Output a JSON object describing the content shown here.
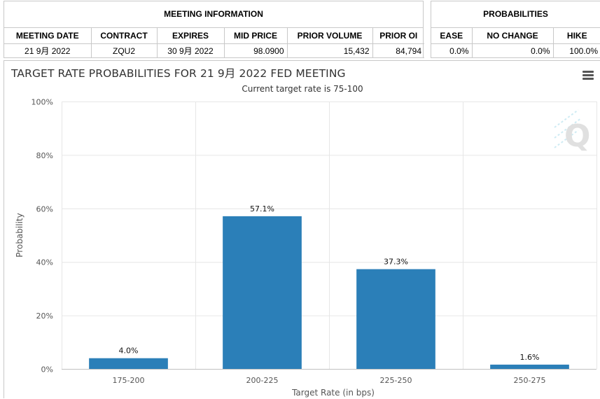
{
  "meeting_info": {
    "title": "MEETING INFORMATION",
    "headers": [
      "MEETING DATE",
      "CONTRACT",
      "EXPIRES",
      "MID PRICE",
      "PRIOR VOLUME",
      "PRIOR OI"
    ],
    "row": [
      "21 9月 2022",
      "ZQU2",
      "30 9月 2022",
      "98.0900",
      "15,432",
      "84,794"
    ]
  },
  "probabilities": {
    "title": "PROBABILITIES",
    "headers": [
      "EASE",
      "NO CHANGE",
      "HIKE"
    ],
    "row": [
      "0.0%",
      "0.0%",
      "100.0%"
    ]
  },
  "chart": {
    "title": "TARGET RATE PROBABILITIES FOR 21 9月 2022 FED MEETING",
    "subtitle": "Current target rate is 75-100",
    "watermark_text": "Q",
    "bar_color": "#2b7fb8"
  },
  "chart_data": {
    "type": "bar",
    "title": "TARGET RATE PROBABILITIES FOR 21 9月 2022 FED MEETING",
    "subtitle": "Current target rate is 75-100",
    "categories": [
      "175-200",
      "200-225",
      "225-250",
      "250-275"
    ],
    "values": [
      4.0,
      57.1,
      37.3,
      1.6
    ],
    "data_labels": [
      "4.0%",
      "57.1%",
      "37.3%",
      "1.6%"
    ],
    "xlabel": "Target Rate (in bps)",
    "ylabel": "Probability",
    "ylim": [
      0,
      100
    ],
    "yticks": [
      0,
      20,
      40,
      60,
      80,
      100
    ],
    "ytick_labels": [
      "0%",
      "20%",
      "40%",
      "60%",
      "80%",
      "100%"
    ],
    "grid": true,
    "legend": "none"
  }
}
